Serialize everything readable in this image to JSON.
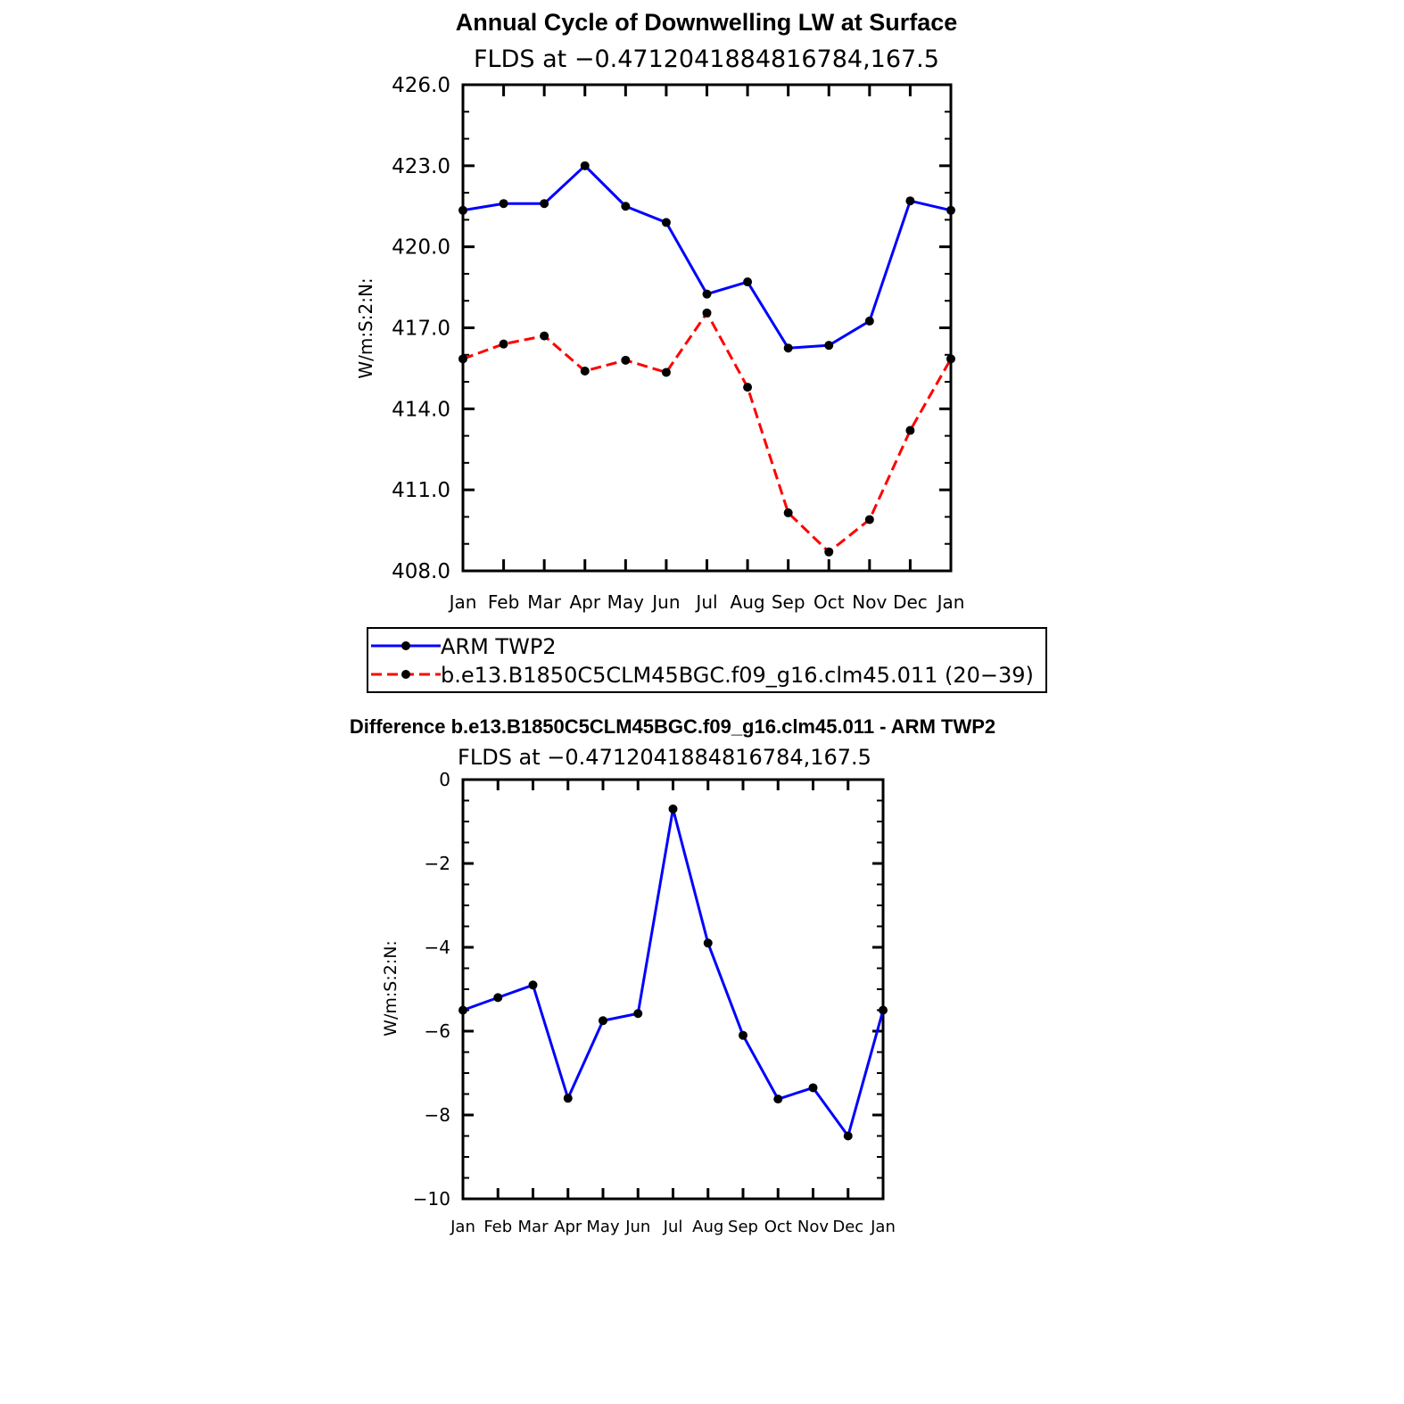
{
  "chart_data": [
    {
      "type": "line",
      "title": "Annual Cycle of Downwelling LW at Surface",
      "subtitle": "FLDS at −0.4712041884816784,167.5",
      "ylabel": "W/m:S:2:N:",
      "categories": [
        "Jan",
        "Feb",
        "Mar",
        "Apr",
        "May",
        "Jun",
        "Jul",
        "Aug",
        "Sep",
        "Oct",
        "Nov",
        "Dec",
        "Jan"
      ],
      "ylim": [
        408.0,
        426.0
      ],
      "yticks": [
        "408.0",
        "411.0",
        "414.0",
        "417.0",
        "420.0",
        "423.0",
        "426.0"
      ],
      "series": [
        {
          "name": "ARM TWP2",
          "color": "#0000ff",
          "dash": "solid",
          "values": [
            421.35,
            421.6,
            421.6,
            423.0,
            421.5,
            420.9,
            418.25,
            418.7,
            416.25,
            416.35,
            417.25,
            421.7,
            421.35
          ]
        },
        {
          "name": "b.e13.B1850C5CLM45BGC.f09_g16.clm45.011 (20−39)",
          "color": "#ff0000",
          "dash": "dashed",
          "values": [
            415.85,
            416.4,
            416.7,
            415.4,
            415.8,
            415.35,
            417.55,
            414.8,
            410.15,
            408.7,
            409.9,
            413.2,
            415.85
          ]
        }
      ]
    },
    {
      "type": "line",
      "title": "Difference b.e13.B1850C5CLM45BGC.f09_g16.clm45.011 - ARM TWP2",
      "subtitle": "FLDS at −0.4712041884816784,167.5",
      "ylabel": "W/m:S:2:N:",
      "categories": [
        "Jan",
        "Feb",
        "Mar",
        "Apr",
        "May",
        "Jun",
        "Jul",
        "Aug",
        "Sep",
        "Oct",
        "Nov",
        "Dec",
        "Jan"
      ],
      "ylim": [
        -10,
        0
      ],
      "yticks": [
        "−10",
        "−8",
        "−6",
        "−4",
        "−2",
        "0"
      ],
      "series": [
        {
          "color": "#0000ff",
          "dash": "solid",
          "values": [
            -5.5,
            -5.2,
            -4.9,
            -7.6,
            -5.75,
            -5.58,
            -0.7,
            -3.9,
            -6.1,
            -7.62,
            -7.35,
            -8.5,
            -5.5
          ]
        }
      ]
    }
  ]
}
